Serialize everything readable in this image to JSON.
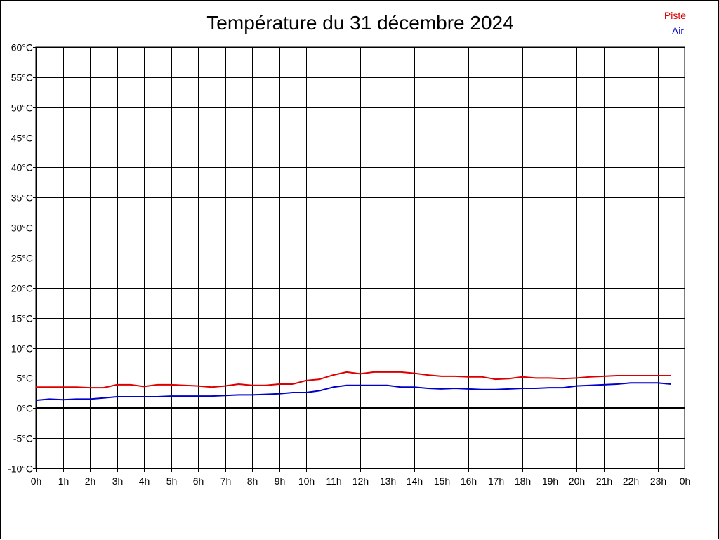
{
  "chart_data": {
    "type": "line",
    "title": "Température du 31 décembre 2024",
    "xlabel": "",
    "ylabel": "",
    "grid": true,
    "legend_position": "top-right",
    "xlim": [
      0,
      24
    ],
    "ylim": [
      -10,
      60
    ],
    "x_ticks": [
      "0h",
      "1h",
      "2h",
      "3h",
      "4h",
      "5h",
      "6h",
      "7h",
      "8h",
      "9h",
      "10h",
      "11h",
      "12h",
      "13h",
      "14h",
      "15h",
      "16h",
      "17h",
      "18h",
      "19h",
      "20h",
      "21h",
      "22h",
      "23h",
      "0h"
    ],
    "y_ticks": [
      "-10°C",
      "-5°C",
      "0°C",
      "5°C",
      "10°C",
      "15°C",
      "20°C",
      "25°C",
      "30°C",
      "35°C",
      "40°C",
      "45°C",
      "50°C",
      "55°C",
      "60°C"
    ],
    "zero_line": 0,
    "x": [
      0,
      0.5,
      1,
      1.5,
      2,
      2.5,
      3,
      3.5,
      4,
      4.5,
      5,
      5.5,
      6,
      6.5,
      7,
      7.5,
      8,
      8.5,
      9,
      9.5,
      10,
      10.5,
      11,
      11.5,
      12,
      12.5,
      13,
      13.5,
      14,
      14.5,
      15,
      15.5,
      16,
      16.5,
      17,
      17.5,
      18,
      18.5,
      19,
      19.5,
      20,
      20.5,
      21,
      21.5,
      22,
      22.5,
      23,
      23.5
    ],
    "series": [
      {
        "name": "Piste",
        "color": "#dd0000",
        "values": [
          3.5,
          3.5,
          3.5,
          3.5,
          3.4,
          3.4,
          3.9,
          3.9,
          3.6,
          3.9,
          3.9,
          3.8,
          3.7,
          3.5,
          3.7,
          4.0,
          3.8,
          3.8,
          4.0,
          4.0,
          4.6,
          4.8,
          5.5,
          6.0,
          5.7,
          6.0,
          6.0,
          6.0,
          5.8,
          5.5,
          5.3,
          5.3,
          5.2,
          5.2,
          4.8,
          4.9,
          5.2,
          5.0,
          5.0,
          4.9,
          5.0,
          5.2,
          5.3,
          5.4,
          5.4,
          5.4,
          5.4,
          5.4
        ]
      },
      {
        "name": "Air",
        "color": "#0000cc",
        "values": [
          1.3,
          1.5,
          1.4,
          1.5,
          1.5,
          1.7,
          1.9,
          1.9,
          1.9,
          1.9,
          2.0,
          2.0,
          2.0,
          2.0,
          2.1,
          2.2,
          2.2,
          2.3,
          2.4,
          2.6,
          2.6,
          2.9,
          3.5,
          3.8,
          3.8,
          3.8,
          3.8,
          3.5,
          3.5,
          3.3,
          3.2,
          3.3,
          3.2,
          3.1,
          3.1,
          3.2,
          3.3,
          3.3,
          3.4,
          3.4,
          3.7,
          3.8,
          3.9,
          4.0,
          4.2,
          4.2,
          4.2,
          4.0
        ]
      }
    ]
  }
}
